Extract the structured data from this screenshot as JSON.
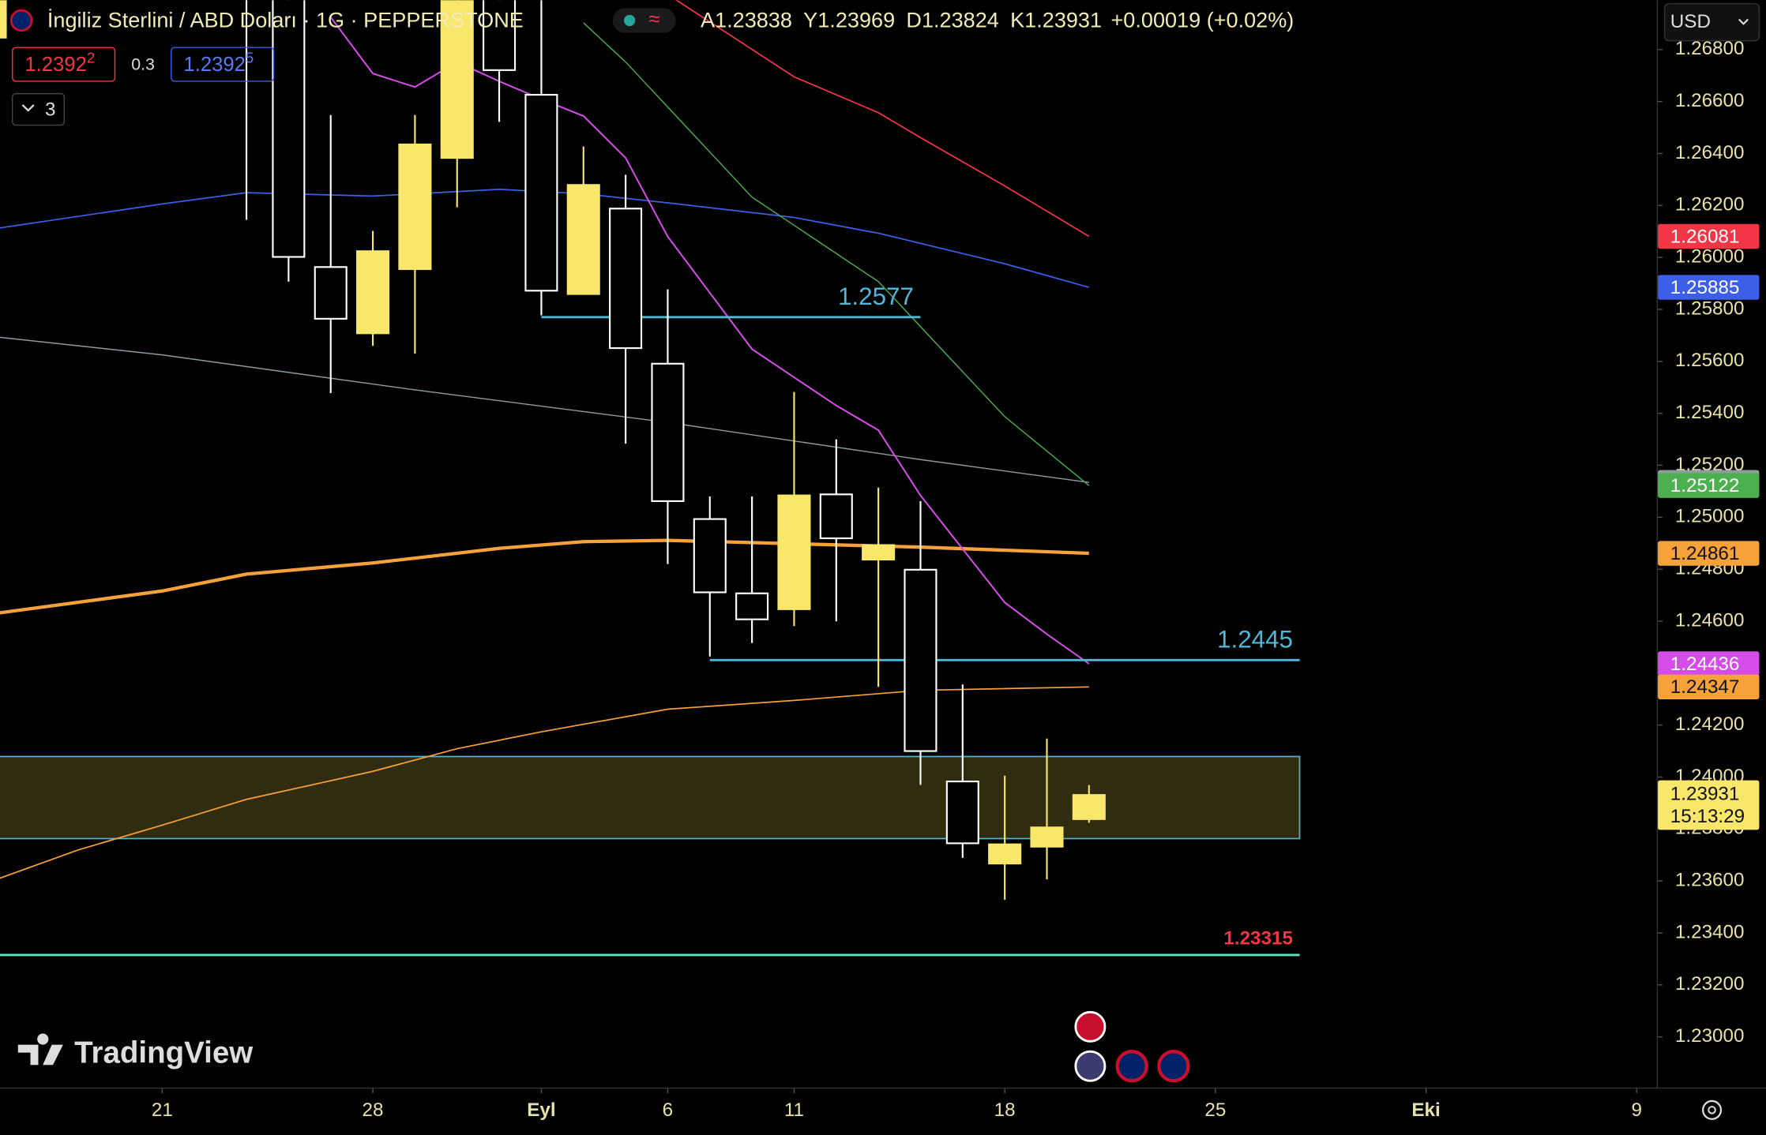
{
  "header": {
    "title": "İngiliz Sterlini / ABD Doları · 1G · PEPPERSTONE",
    "ohlc_labels": [
      "A",
      "Y",
      "D",
      "K"
    ],
    "change": "+0.00019 (+0.02%)",
    "bid": "1.2392",
    "bid_pip": "2",
    "spread": "0.3",
    "ask": "1.2392",
    "ask_pip": "5",
    "indicators": "3",
    "currency": "USD",
    "logo": "TradingView"
  },
  "chart_data": {
    "type": "candlestick",
    "xlim": [
      -3.85,
      35.45
    ],
    "xticks": [
      {
        "value": 0,
        "label": "21"
      },
      {
        "value": 5,
        "label": "28"
      },
      {
        "value": 9,
        "label": "Eyl"
      },
      {
        "value": 12,
        "label": "6"
      },
      {
        "value": 15,
        "label": "11"
      },
      {
        "value": 20,
        "label": "18"
      },
      {
        "value": 25,
        "label": "25"
      },
      {
        "value": 30,
        "label": "Eki"
      },
      {
        "value": 35,
        "label": "9"
      }
    ],
    "ylim": [
      1.22805,
      1.2699
    ],
    "yticks": [
      {
        "value": 1.268,
        "label": "1.26800"
      },
      {
        "value": 1.266,
        "label": "1.26600"
      },
      {
        "value": 1.264,
        "label": "1.26400"
      },
      {
        "value": 1.262,
        "label": "1.26200"
      },
      {
        "value": 1.26,
        "label": "1.26000"
      },
      {
        "value": 1.258,
        "label": "1.25800"
      },
      {
        "value": 1.256,
        "label": "1.25600"
      },
      {
        "value": 1.254,
        "label": "1.25400"
      },
      {
        "value": 1.252,
        "label": "1.25200"
      },
      {
        "value": 1.25,
        "label": "1.25000"
      },
      {
        "value": 1.248,
        "label": "1.24800"
      },
      {
        "value": 1.246,
        "label": "1.24600"
      },
      {
        "value": 1.244,
        "label": "1.24400"
      },
      {
        "value": 1.242,
        "label": "1.24200"
      },
      {
        "value": 1.24,
        "label": "1.24000"
      },
      {
        "value": 1.238,
        "label": "1.23800"
      },
      {
        "value": 1.236,
        "label": "1.23600"
      },
      {
        "value": 1.234,
        "label": "1.23400"
      },
      {
        "value": 1.232,
        "label": "1.23200"
      },
      {
        "value": 1.23,
        "label": "1.23000"
      }
    ],
    "up_color": "#f9e76c",
    "down_color": "#ffffff",
    "candles": {
      "x": [
        2,
        3,
        4,
        5,
        6,
        7,
        8,
        9,
        10,
        11,
        12,
        13,
        14,
        15,
        16,
        17,
        18,
        19,
        20,
        21,
        22
      ],
      "open": [
        1.2712,
        1.2702,
        1.25963,
        1.25708,
        1.25955,
        1.26383,
        1.2715,
        1.26626,
        1.25859,
        1.26188,
        1.25591,
        1.24993,
        1.24707,
        1.24646,
        1.25088,
        1.24837,
        1.24798,
        1.23983,
        1.23667,
        1.23732,
        1.23838
      ],
      "high": [
        1.2728,
        1.2712,
        1.26548,
        1.26102,
        1.26548,
        1.2712,
        1.2725,
        1.2705,
        1.26427,
        1.26318,
        1.25877,
        1.2508,
        1.2508,
        1.25482,
        1.253,
        1.25114,
        1.25062,
        1.24356,
        1.24005,
        1.24148,
        1.23969
      ],
      "low": [
        1.26145,
        1.25907,
        1.25478,
        1.2566,
        1.2563,
        1.26193,
        1.26522,
        1.25777,
        1.25859,
        1.25283,
        1.2482,
        1.24464,
        1.24516,
        1.24581,
        1.24599,
        1.24347,
        1.2397,
        1.23689,
        1.23528,
        1.23606,
        1.23824
      ],
      "close": [
        1.2702,
        1.26002,
        1.25764,
        1.26024,
        1.26435,
        1.2702,
        1.26721,
        1.25872,
        1.26279,
        1.25651,
        1.25062,
        1.24711,
        1.24607,
        1.25084,
        1.24919,
        1.24893,
        1.241,
        1.23745,
        1.23741,
        1.23806,
        1.23931
      ]
    },
    "last_time": "15:13:29",
    "series": [
      {
        "color": "#f23645",
        "width": 1.2,
        "x": [
          12,
          15,
          17,
          18,
          20,
          22
        ],
        "values": [
          1.27012,
          1.26695,
          1.26557,
          1.26461,
          1.26275,
          1.26081
        ]
      },
      {
        "color": "#3d5ee8",
        "width": 1.2,
        "x": [
          -4,
          0,
          2,
          5,
          8,
          10,
          12,
          15,
          17,
          20,
          22
        ],
        "values": [
          1.2611,
          1.26206,
          1.26249,
          1.26236,
          1.26262,
          1.26245,
          1.2621,
          1.26154,
          1.26093,
          1.25976,
          1.25885
        ]
      },
      {
        "color": "#8e9c9e",
        "width": 1,
        "x": [
          -4,
          0,
          6,
          12,
          18,
          22
        ],
        "values": [
          1.25695,
          1.25625,
          1.2549,
          1.25365,
          1.25222,
          1.25134
        ]
      },
      {
        "color": "#4caf50",
        "width": 1,
        "x": [
          10,
          11,
          14,
          17,
          20,
          22
        ],
        "values": [
          1.26903,
          1.26752,
          1.26232,
          1.25907,
          1.25387,
          1.25122
        ]
      },
      {
        "color": "#f7a13a",
        "width": 3,
        "x": [
          -4,
          0,
          2,
          5,
          8,
          10,
          12,
          15,
          18,
          22
        ],
        "values": [
          1.24629,
          1.24716,
          1.24781,
          1.24824,
          1.2488,
          1.24906,
          1.24911,
          1.24898,
          1.24885,
          1.24861
        ]
      },
      {
        "color": "#d64ce8",
        "width": 1.4,
        "x": [
          4,
          5,
          6,
          7,
          8,
          9,
          10,
          11,
          12,
          14,
          16,
          17,
          18,
          20,
          21,
          22
        ],
        "values": [
          1.26925,
          1.26708,
          1.26656,
          1.26752,
          1.26678,
          1.26609,
          1.26544,
          1.26383,
          1.2608,
          1.25647,
          1.2543,
          1.25335,
          1.25084,
          1.24672,
          1.2455,
          1.24436
        ]
      },
      {
        "color": "#f7a13a",
        "width": 1.2,
        "x": [
          -4,
          -2,
          0,
          2,
          5,
          7,
          9,
          12,
          15,
          18,
          22
        ],
        "values": [
          1.23602,
          1.23719,
          1.23815,
          1.23914,
          1.24022,
          1.24109,
          1.24174,
          1.24261,
          1.24295,
          1.24334,
          1.24347
        ]
      }
    ],
    "levels": [
      {
        "value": 1.2577,
        "x": [
          9,
          18
        ],
        "color": "#4fb8d8",
        "label_color": "#4fb8d8"
      },
      {
        "value": 1.2445,
        "x": [
          13,
          27
        ],
        "color": "#4fb8d8",
        "label_color": "#4fb8d8"
      },
      {
        "value": 1.23315,
        "x": [
          -4,
          27
        ],
        "color": "#5de3c0",
        "label_color": "#f23645"
      }
    ],
    "zone": {
      "low": 1.23763,
      "high": 1.24079,
      "x": [
        -4,
        27
      ],
      "color": "#4fb8d8",
      "fill": "#3a3412"
    }
  }
}
